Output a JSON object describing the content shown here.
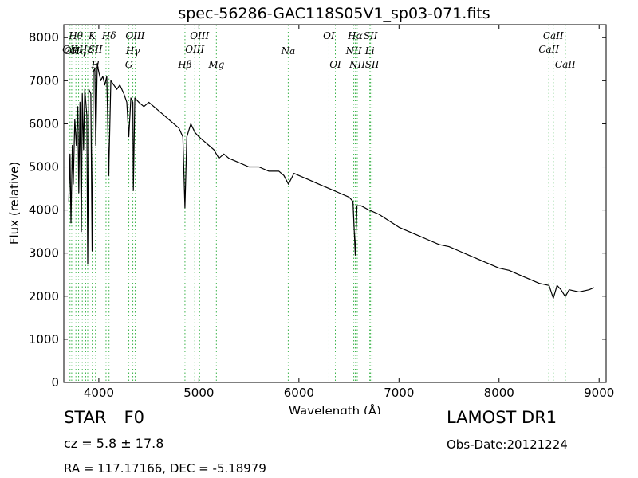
{
  "chart_data": {
    "type": "line",
    "title": "spec-56286-GAC118S05V1_sp03-071.fits",
    "xlabel": "Wavelength (Å)",
    "ylabel": "Flux (relative)",
    "xlim": [
      3650,
      9070
    ],
    "ylim": [
      0,
      8300
    ],
    "xticks": [
      4000,
      5000,
      6000,
      7000,
      8000,
      9000
    ],
    "yticks": [
      0,
      1000,
      2000,
      3000,
      4000,
      5000,
      6000,
      7000,
      8000
    ],
    "line_color": "#000000",
    "marker_color": "#3cb44b",
    "series": [
      {
        "x": [
          3700,
          3712,
          3722,
          3735,
          3745,
          3760,
          3775,
          3790,
          3800,
          3812,
          3825,
          3835,
          3848,
          3860,
          3880,
          3889,
          3900,
          3920,
          3933,
          3945,
          3960,
          3970,
          3985,
          4000,
          4020,
          4040,
          4060,
          4080,
          4100,
          4102,
          4120,
          4150,
          4180,
          4210,
          4250,
          4280,
          4300,
          4320,
          4340,
          4345,
          4360,
          4400,
          4450,
          4500,
          4550,
          4600,
          4650,
          4700,
          4750,
          4800,
          4840,
          4861,
          4880,
          4920,
          4960,
          5000,
          5050,
          5100,
          5150,
          5200,
          5250,
          5300,
          5400,
          5500,
          5600,
          5700,
          5800,
          5850,
          5895,
          5950,
          6000,
          6100,
          6200,
          6300,
          6400,
          6500,
          6540,
          6563,
          6580,
          6620,
          6700,
          6800,
          6900,
          7000,
          7100,
          7200,
          7300,
          7400,
          7500,
          7600,
          7700,
          7800,
          7900,
          8000,
          8100,
          8200,
          8300,
          8400,
          8500,
          8542,
          8580,
          8620,
          8662,
          8700,
          8800,
          8900,
          8950
        ],
        "y": [
          4200,
          5300,
          3700,
          5500,
          4600,
          6100,
          5500,
          6400,
          4400,
          6500,
          3500,
          6700,
          5400,
          6800,
          6200,
          2750,
          6800,
          6700,
          3050,
          7200,
          7300,
          5500,
          7400,
          7200,
          7000,
          7100,
          6900,
          7100,
          4800,
          5100,
          7000,
          6900,
          6800,
          6900,
          6700,
          6500,
          5700,
          6600,
          6500,
          4450,
          6600,
          6500,
          6400,
          6500,
          6400,
          6300,
          6200,
          6100,
          6000,
          5900,
          5700,
          4050,
          5700,
          6000,
          5800,
          5700,
          5600,
          5500,
          5400,
          5200,
          5300,
          5200,
          5100,
          5000,
          5000,
          4900,
          4900,
          4800,
          4600,
          4850,
          4800,
          4700,
          4600,
          4500,
          4400,
          4300,
          4200,
          2950,
          4100,
          4100,
          4000,
          3900,
          3750,
          3600,
          3500,
          3400,
          3300,
          3200,
          3150,
          3050,
          2950,
          2850,
          2750,
          2650,
          2600,
          2500,
          2400,
          2300,
          2250,
          1950,
          2250,
          2150,
          1990,
          2150,
          2100,
          2150,
          2200
        ]
      }
    ],
    "line_markers": [
      {
        "x": 3712,
        "label": "OII",
        "row": 2
      },
      {
        "x": 3729,
        "label": "OII",
        "row": 3
      },
      {
        "x": 3771,
        "label": "Hθ",
        "row": 1
      },
      {
        "x": 3798,
        "label": "Hη",
        "row": 3
      },
      {
        "x": 3835,
        "label": "",
        "row": 0
      },
      {
        "x": 3869,
        "label": "Hε",
        "row": 2
      },
      {
        "x": 3889,
        "label": "",
        "row": 0
      },
      {
        "x": 3934,
        "label": "K",
        "row": 1
      },
      {
        "x": 3968,
        "label": "H",
        "row": 4
      },
      {
        "x": 3967,
        "label": "SII",
        "row": 2
      },
      {
        "x": 4072,
        "label": "",
        "row": 0
      },
      {
        "x": 4102,
        "label": "Hδ",
        "row": 1
      },
      {
        "x": 4300,
        "label": "G",
        "row": 4
      },
      {
        "x": 4340,
        "label": "Hγ",
        "row": 3
      },
      {
        "x": 4363,
        "label": "OIII",
        "row": 1
      },
      {
        "x": 4861,
        "label": "Hβ",
        "row": 4
      },
      {
        "x": 4959,
        "label": "OIII",
        "row": 2
      },
      {
        "x": 5007,
        "label": "OIII",
        "row": 1
      },
      {
        "x": 5175,
        "label": "Mg",
        "row": 4
      },
      {
        "x": 5893,
        "label": "Na",
        "row": 3
      },
      {
        "x": 6300,
        "label": "OI",
        "row": 1
      },
      {
        "x": 6364,
        "label": "OI",
        "row": 4
      },
      {
        "x": 6548,
        "label": "NII",
        "row": 3
      },
      {
        "x": 6563,
        "label": "Hα",
        "row": 1
      },
      {
        "x": 6583,
        "label": "NII",
        "row": 4
      },
      {
        "x": 6708,
        "label": "Li",
        "row": 3
      },
      {
        "x": 6716,
        "label": "SII",
        "row": 1
      },
      {
        "x": 6731,
        "label": "SII",
        "row": 4
      },
      {
        "x": 8498,
        "label": "CaII",
        "row": 2
      },
      {
        "x": 8542,
        "label": "CaII",
        "row": 1
      },
      {
        "x": 8662,
        "label": "CaII",
        "row": 4
      }
    ]
  },
  "footer": {
    "object_class": "STAR",
    "subclass": "F0",
    "survey": "LAMOST DR1",
    "redshift": "cz = 5.8  ± 17.8",
    "obs_date": "Obs-Date:20121224",
    "coords": "RA = 117.17166, DEC = -5.18979"
  }
}
